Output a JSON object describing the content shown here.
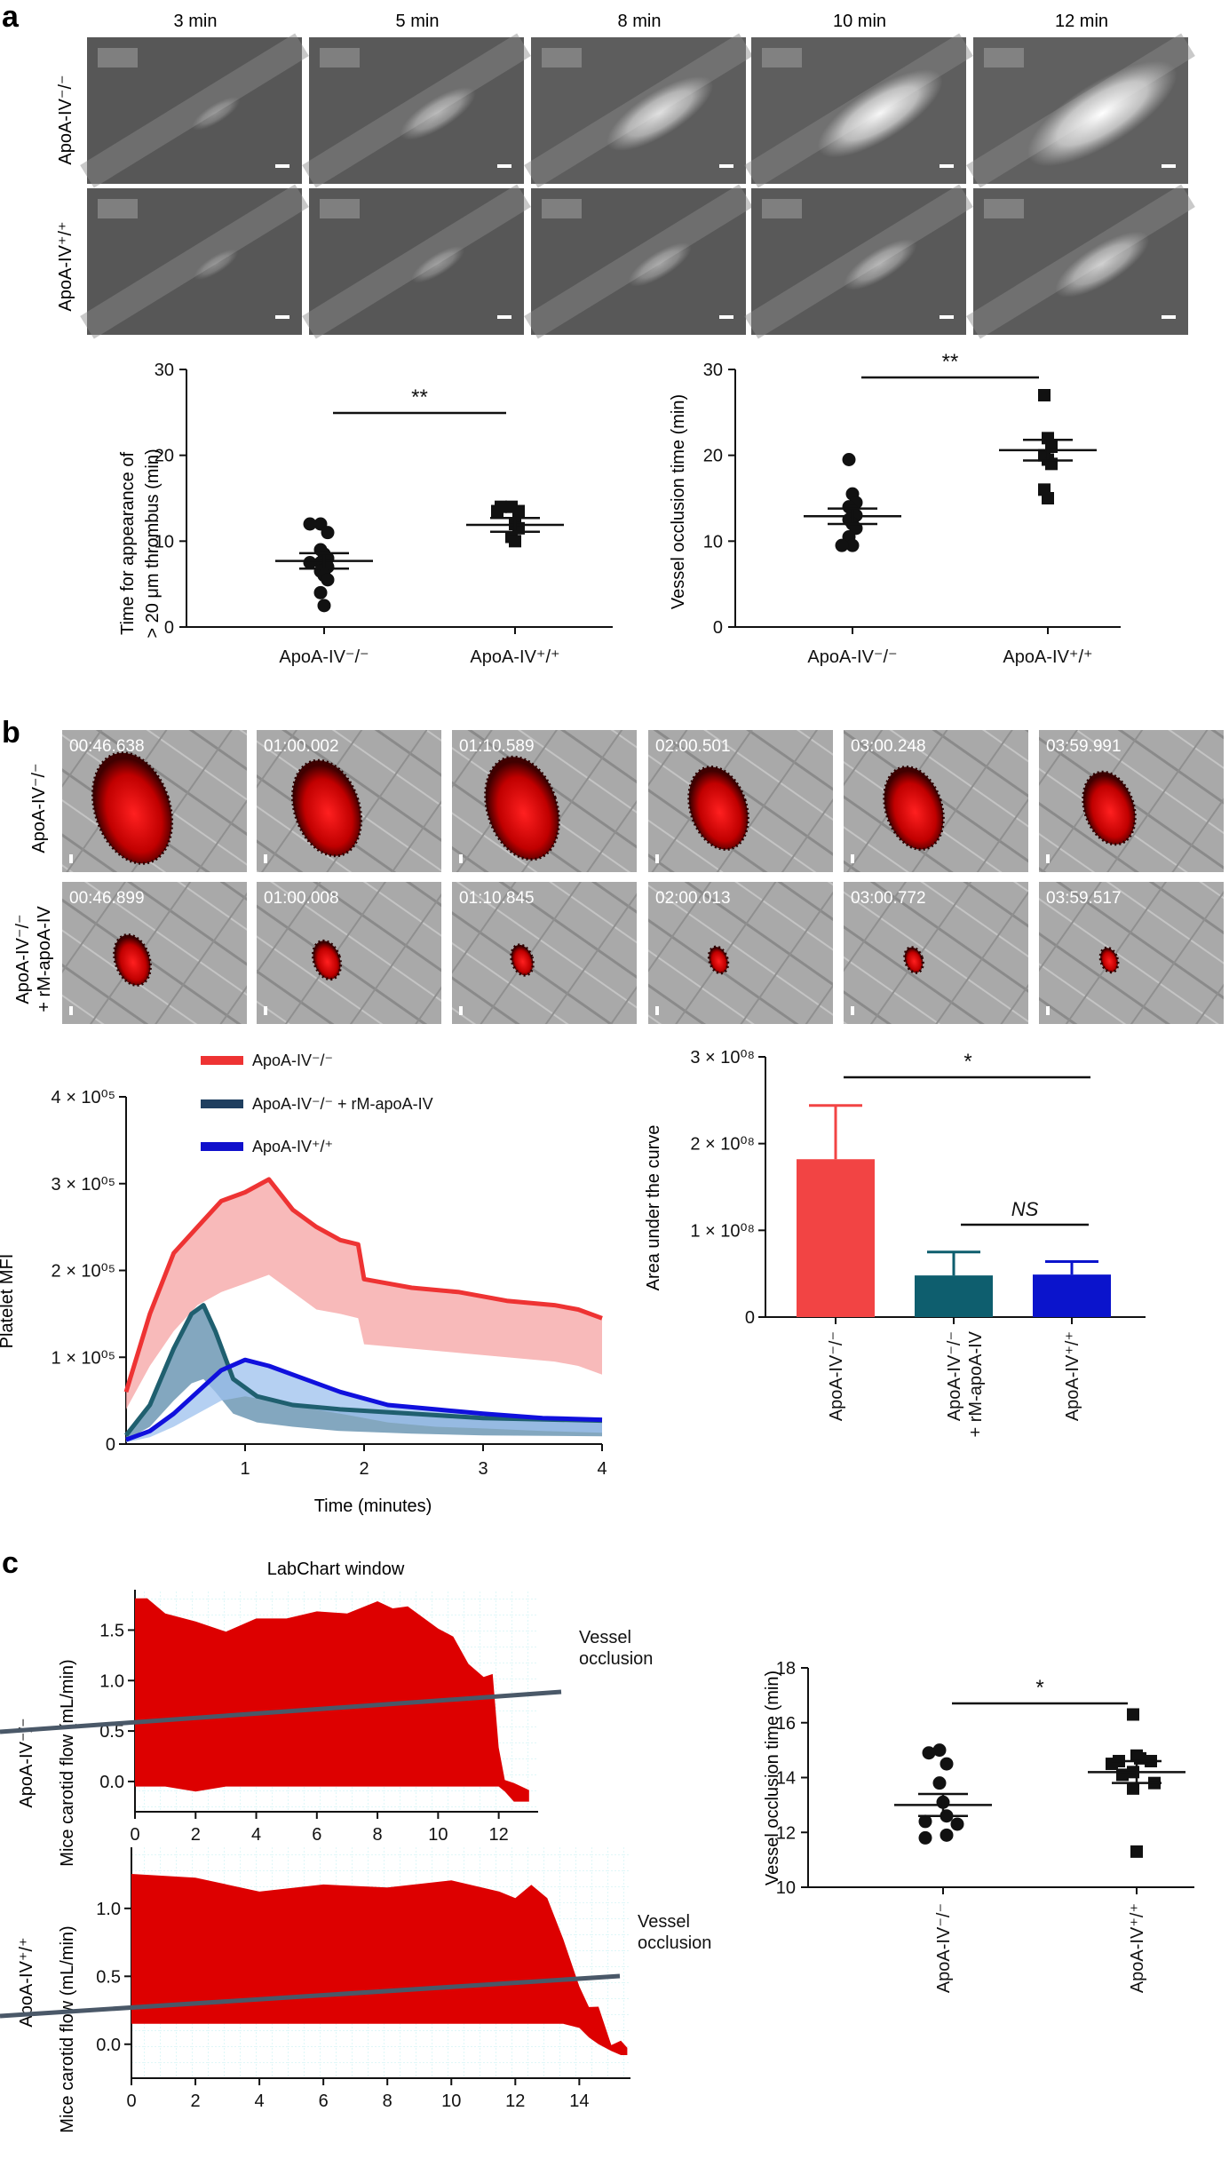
{
  "panels": [
    {
      "letter": "a",
      "timepoints": [
        "3 min",
        "5 min",
        "8 min",
        "10 min",
        "12 min"
      ],
      "rows": [
        {
          "label": "ApoA-IV⁻/⁻",
          "brightness": [
            0.08,
            0.3,
            0.55,
            0.7,
            0.9
          ]
        },
        {
          "label": "ApoA-IV⁺/⁺",
          "brightness": [
            0.05,
            0.12,
            0.2,
            0.28,
            0.45
          ]
        }
      ]
    },
    {
      "letter": "b"
    },
    {
      "letter": "c"
    }
  ],
  "a_time": {
    "ylabel_line1": "Time for appearance of",
    "ylabel_line2": "> 20 μm thrombus (min)",
    "ylim": [
      0,
      30
    ],
    "yticks": [
      "0",
      "10",
      "20",
      "30"
    ],
    "sig": "**",
    "groups": [
      {
        "name": "ApoA-IV⁻/⁻",
        "marker": "circle",
        "mean": 7.7,
        "sem": 0.9,
        "points": [
          12,
          12,
          11,
          9,
          8.5,
          8,
          7.5,
          7.5,
          7,
          6.5,
          6,
          5.5,
          4,
          2.5
        ]
      },
      {
        "name": "ApoA-IV⁺/⁺",
        "marker": "square",
        "mean": 11.9,
        "sem": 0.8,
        "points": [
          14,
          14,
          13.5,
          13.5,
          12,
          11.5,
          10.5,
          10
        ]
      }
    ]
  },
  "a_occl": {
    "ylabel": "Vessel occlusion time (min)",
    "ylim": [
      0,
      30
    ],
    "yticks": [
      "0",
      "10",
      "20",
      "30"
    ],
    "sig": "**",
    "groups": [
      {
        "name": "ApoA-IV⁻/⁻",
        "marker": "circle",
        "mean": 12.9,
        "sem": 0.9,
        "points": [
          19.5,
          15.5,
          14.5,
          14,
          13.5,
          13,
          12.5,
          12,
          11.5,
          10.5,
          9.5,
          9.5
        ]
      },
      {
        "name": "ApoA-IV⁺/⁺",
        "marker": "square",
        "mean": 20.6,
        "sem": 1.2,
        "points": [
          27,
          22,
          21,
          20,
          19.5,
          19,
          16,
          15
        ]
      }
    ]
  },
  "b_images": {
    "rows": [
      {
        "label_line1": "ApoA-IV⁻/⁻",
        "label_line2": "",
        "timestamps": [
          "00:46.638",
          "01:00.002",
          "01:10.589",
          "02:00.501",
          "03:00.248",
          "03:59.991"
        ],
        "clot_size": [
          1.0,
          0.85,
          0.92,
          0.72,
          0.72,
          0.62
        ]
      },
      {
        "label_line1": "ApoA-IV⁻/⁻",
        "label_line2": "+ rM-apoA-IV",
        "timestamps": [
          "00:46.899",
          "01:00.008",
          "01:10.845",
          "02:00.013",
          "03:00.772",
          "03:59.517"
        ],
        "clot_size": [
          0.4,
          0.28,
          0.2,
          0.16,
          0.15,
          0.14
        ]
      }
    ]
  },
  "b_mfi": {
    "ylabel": "Platelet MFI",
    "xlabel": "Time (minutes)",
    "xlim": [
      0,
      4
    ],
    "ylim": [
      0,
      400000
    ],
    "xticks": [
      "1",
      "2",
      "3",
      "4"
    ],
    "yticks": [
      "0",
      "1 × 10⁰⁵",
      "2 × 10⁰⁵",
      "3 × 10⁰⁵",
      "4 × 10⁰⁵"
    ],
    "legend": [
      {
        "name": "ApoA-IV⁻/⁻",
        "color": "#ee3333"
      },
      {
        "name": "ApoA-IV⁻/⁻ + rM-apoA-IV",
        "color": "#1f3f5f"
      },
      {
        "name": "ApoA-IV⁺/⁺",
        "color": "#1010cc"
      }
    ],
    "series": [
      {
        "color": "#ee3333",
        "band": "#f6a3a3",
        "x": [
          0,
          0.2,
          0.4,
          0.6,
          0.8,
          1.0,
          1.2,
          1.4,
          1.6,
          1.8,
          1.95,
          2.0,
          2.4,
          2.8,
          3.2,
          3.6,
          3.8,
          4.0
        ],
        "mean": [
          60000,
          150000,
          220000,
          250000,
          280000,
          290000,
          305000,
          270000,
          250000,
          235000,
          230000,
          190000,
          180000,
          175000,
          165000,
          160000,
          155000,
          145000
        ],
        "lower": [
          40000,
          90000,
          130000,
          160000,
          175000,
          185000,
          195000,
          175000,
          155000,
          150000,
          145000,
          115000,
          110000,
          105000,
          100000,
          95000,
          90000,
          80000
        ]
      },
      {
        "color": "#1f5f6f",
        "band": "#5a8aaa",
        "x": [
          0,
          0.2,
          0.4,
          0.55,
          0.65,
          0.75,
          0.9,
          1.1,
          1.4,
          1.8,
          2.4,
          3.0,
          4.0
        ],
        "mean": [
          10000,
          45000,
          110000,
          150000,
          160000,
          130000,
          75000,
          55000,
          45000,
          40000,
          35000,
          30000,
          27000
        ],
        "lower": [
          5000,
          20000,
          50000,
          70000,
          75000,
          60000,
          35000,
          25000,
          20000,
          15000,
          12000,
          10000,
          9000
        ]
      },
      {
        "color": "#1010dd",
        "band": "#9cc0ee",
        "x": [
          0,
          0.2,
          0.4,
          0.6,
          0.8,
          1.0,
          1.2,
          1.5,
          1.8,
          2.2,
          2.6,
          3.0,
          3.5,
          4.0
        ],
        "mean": [
          5000,
          15000,
          35000,
          60000,
          85000,
          97000,
          90000,
          75000,
          60000,
          45000,
          40000,
          35000,
          30000,
          28000
        ],
        "lower": [
          2000,
          8000,
          20000,
          35000,
          50000,
          55000,
          50000,
          42000,
          35000,
          25000,
          20000,
          18000,
          15000,
          13000
        ]
      }
    ]
  },
  "b_auc": {
    "ylabel": "Area under the curve",
    "ylim": [
      0,
      300000000
    ],
    "yticks": [
      "0",
      "1 × 10⁰⁸",
      "2 × 10⁰⁸",
      "3 × 10⁰⁸"
    ],
    "categories": [
      "ApoA-IV⁻/⁻",
      "ApoA-IV⁻/⁻",
      "ApoA-IV⁺/⁺"
    ],
    "category_line2": [
      "",
      "+ rM-apoA-IV",
      ""
    ],
    "values": [
      182000000,
      48000000,
      49000000
    ],
    "errors": [
      62000000,
      27000000,
      15000000
    ],
    "colors": [
      "#f24444",
      "#0e5e6e",
      "#0b14cc"
    ],
    "sig_top": "*",
    "sig_ns": "NS"
  },
  "c_traces": {
    "window_title": "LabChart window",
    "ylabel": "Mice carotid flow (mL/min)",
    "annotation_line1": "Vessel",
    "annotation_line2": "occlusion",
    "rows": [
      {
        "label": "ApoA-IV⁻/⁻",
        "xlim": [
          0,
          13.3
        ],
        "ylim": [
          -0.3,
          1.9
        ],
        "xticks": [
          "0",
          "2",
          "4",
          "6",
          "8",
          "10",
          "12"
        ],
        "yticks": [
          "0.0",
          "0.5",
          "1.0",
          "1.5"
        ],
        "ytick_values": [
          0,
          0.5,
          1.0,
          1.5
        ],
        "occlusion_at": 12,
        "x": [
          0,
          0.4,
          1,
          2,
          3,
          4,
          5,
          6,
          7,
          8,
          8.5,
          9,
          10,
          10.5,
          11,
          11.5,
          11.8,
          12.0,
          12.2,
          12.5,
          13.0
        ],
        "upper": [
          1.85,
          1.78,
          1.7,
          1.55,
          1.52,
          1.58,
          1.65,
          1.65,
          1.7,
          1.75,
          1.75,
          1.7,
          1.55,
          1.4,
          1.2,
          1.0,
          1.1,
          0.3,
          0.05,
          -0.05,
          -0.05
        ],
        "lower": [
          -0.05,
          -0.05,
          -0.05,
          -0.1,
          -0.05,
          -0.05,
          -0.05,
          -0.05,
          -0.05,
          -0.05,
          -0.05,
          -0.05,
          -0.05,
          -0.05,
          -0.05,
          -0.05,
          -0.05,
          -0.05,
          -0.1,
          -0.2,
          -0.2
        ]
      },
      {
        "label": "ApoA-IV⁺/⁺",
        "xlim": [
          0,
          15.6
        ],
        "ylim": [
          -0.25,
          1.45
        ],
        "xticks": [
          "0",
          "2",
          "4",
          "6",
          "8",
          "10",
          "12",
          "14"
        ],
        "yticks": [
          "0.0",
          "0.5",
          "1.0"
        ],
        "ytick_values": [
          0,
          0.5,
          1.0
        ],
        "occlusion_at": 15,
        "x": [
          0,
          2,
          4,
          6,
          8,
          10,
          11.5,
          12.0,
          12.5,
          13.0,
          13.5,
          14.0,
          14.3,
          14.6,
          15.0,
          15.3,
          15.5
        ],
        "upper": [
          1.28,
          1.2,
          1.15,
          1.15,
          1.18,
          1.18,
          1.15,
          1.05,
          1.2,
          1.05,
          0.8,
          0.4,
          0.3,
          0.25,
          0.02,
          0.0,
          0.0
        ],
        "lower": [
          0.15,
          0.15,
          0.15,
          0.15,
          0.15,
          0.15,
          0.15,
          0.15,
          0.15,
          0.15,
          0.15,
          0.12,
          0.05,
          0.0,
          -0.05,
          -0.08,
          -0.08
        ]
      }
    ]
  },
  "c_occl": {
    "ylabel": "Vessel occlusion time (min)",
    "ylim": [
      10,
      18
    ],
    "yticks": [
      "10",
      "12",
      "14",
      "16",
      "18"
    ],
    "sig": "*",
    "groups": [
      {
        "name": "ApoA-IV⁻/⁻",
        "marker": "circle",
        "mean": 13.0,
        "sem": 0.4,
        "points": [
          15.0,
          14.9,
          14.5,
          13.8,
          13.1,
          12.6,
          12.4,
          12.3,
          11.9,
          11.8
        ]
      },
      {
        "name": "ApoA-IV⁺/⁺",
        "marker": "square",
        "mean": 14.2,
        "sem": 0.4,
        "points": [
          16.3,
          14.8,
          14.7,
          14.6,
          14.6,
          14.5,
          14.2,
          14.1,
          13.8,
          13.6,
          11.3
        ]
      }
    ]
  }
}
